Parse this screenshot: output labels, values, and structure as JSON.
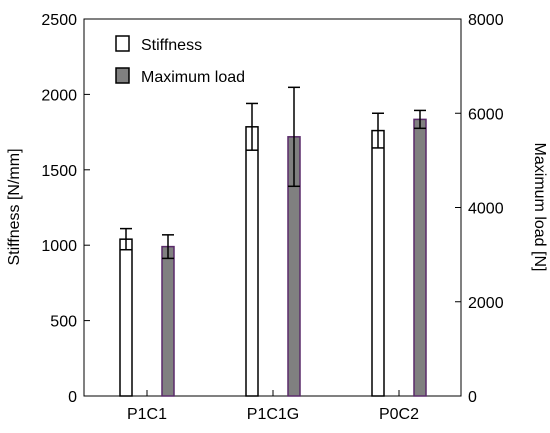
{
  "chart_data": {
    "type": "bar",
    "categories": [
      "P1C1",
      "P1C1G",
      "P0C2"
    ],
    "series": [
      {
        "name": "Stiffness",
        "axis": "left",
        "color": "#ffffff",
        "stroke": "#000000",
        "values": [
          1040,
          1785,
          1760
        ],
        "errors": [
          70,
          155,
          115
        ]
      },
      {
        "name": "Maximum load",
        "axis": "right",
        "color": "#808080",
        "stroke": "#5a2a6a",
        "values": [
          3170,
          5500,
          5870
        ],
        "errors": [
          250,
          1050,
          190
        ]
      }
    ],
    "ylabel": "Stiffness [N/mm]",
    "y2label": "Maximum load [N]",
    "ylim": [
      0,
      2500
    ],
    "y2lim": [
      0,
      8000
    ],
    "yticks": [
      0,
      500,
      1000,
      1500,
      2000,
      2500
    ],
    "y2ticks": [
      0,
      2000,
      4000,
      6000,
      8000
    ],
    "legend_position": "top-left",
    "grid": false
  }
}
